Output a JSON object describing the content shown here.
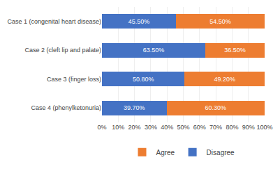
{
  "chart_data": {
    "type": "bar",
    "orientation": "horizontal",
    "stacked": true,
    "categories": [
      "Case 1 (congenital heart disease)",
      "Case 2 (cleft lip and palate)",
      "Case 3 (finger loss)",
      "Case 4 (phenylketonuria)"
    ],
    "series": [
      {
        "name": "Disagree",
        "color": "#4472C4",
        "values": [
          45.5,
          63.5,
          50.8,
          39.7
        ],
        "value_labels": [
          "45.50%",
          "63.50%",
          "50.80%",
          "39.70%"
        ]
      },
      {
        "name": "Agree",
        "color": "#ED7D31",
        "values": [
          54.5,
          36.5,
          49.2,
          60.3
        ],
        "value_labels": [
          "54.50%",
          "36.50%",
          "49.20%",
          "60.30%"
        ]
      }
    ],
    "xlim": [
      0,
      100
    ],
    "xticks": [
      {
        "value": 0,
        "label": "0%"
      },
      {
        "value": 10,
        "label": "10%"
      },
      {
        "value": 20,
        "label": "20%"
      },
      {
        "value": 30,
        "label": "30%"
      },
      {
        "value": 40,
        "label": "40%"
      },
      {
        "value": 50,
        "label": "50%"
      },
      {
        "value": 60,
        "label": "60%"
      },
      {
        "value": 70,
        "label": "70%"
      },
      {
        "value": 80,
        "label": "80%"
      },
      {
        "value": 90,
        "label": "90%"
      },
      {
        "value": 100,
        "label": "100%"
      }
    ],
    "grid": true,
    "legend": "bottom",
    "data_labels": true
  }
}
